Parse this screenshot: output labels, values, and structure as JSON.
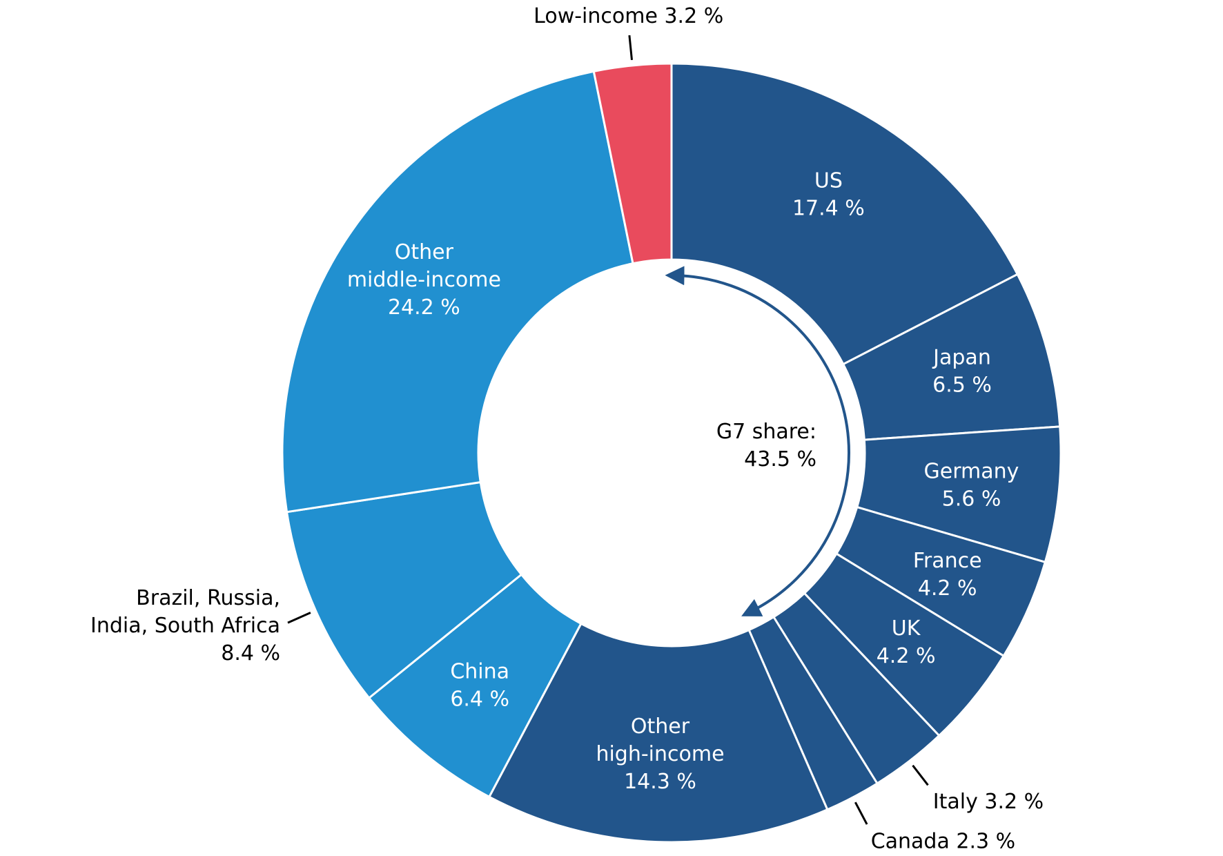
{
  "chart_data": {
    "type": "pie",
    "variant": "donut",
    "unit": "%",
    "slices": [
      {
        "label_lines": [
          "US",
          "17.4 %"
        ],
        "value": 17.4,
        "color": "#22558b",
        "label_position": "inside"
      },
      {
        "label_lines": [
          "Japan",
          "6.5 %"
        ],
        "value": 6.5,
        "color": "#22558b",
        "label_position": "inside"
      },
      {
        "label_lines": [
          "Germany",
          "5.6 %"
        ],
        "value": 5.6,
        "color": "#22558b",
        "label_position": "inside"
      },
      {
        "label_lines": [
          "France",
          "4.2 %"
        ],
        "value": 4.2,
        "color": "#22558b",
        "label_position": "inside"
      },
      {
        "label_lines": [
          "UK",
          "4.2 %"
        ],
        "value": 4.2,
        "color": "#22558b",
        "label_position": "inside"
      },
      {
        "label_lines": [
          "Italy 3.2 %"
        ],
        "value": 3.2,
        "color": "#22558b",
        "label_position": "outside"
      },
      {
        "label_lines": [
          "Canada 2.3 %"
        ],
        "value": 2.3,
        "color": "#22558b",
        "label_position": "outside"
      },
      {
        "label_lines": [
          "Other",
          "high-income",
          "14.3 %"
        ],
        "value": 14.3,
        "color": "#22558b",
        "label_position": "inside"
      },
      {
        "label_lines": [
          "China",
          "6.4 %"
        ],
        "value": 6.4,
        "color": "#2190d0",
        "label_position": "inside"
      },
      {
        "label_lines": [
          "Brazil, Russia,",
          "India, South Africa",
          "8.4 %"
        ],
        "value": 8.4,
        "color": "#2190d0",
        "label_position": "outside"
      },
      {
        "label_lines": [
          "Other",
          "middle-income",
          "24.2 %"
        ],
        "value": 24.2,
        "color": "#2190d0",
        "label_position": "inside"
      },
      {
        "label_lines": [
          "Low-income 3.2 %"
        ],
        "value": 3.2,
        "color": "#e94b5d",
        "label_position": "outside"
      }
    ],
    "center_annotation": {
      "lines": [
        "G7 share:",
        "43.5 %"
      ],
      "value": 43.5,
      "arrow_color": "#22558b"
    }
  }
}
